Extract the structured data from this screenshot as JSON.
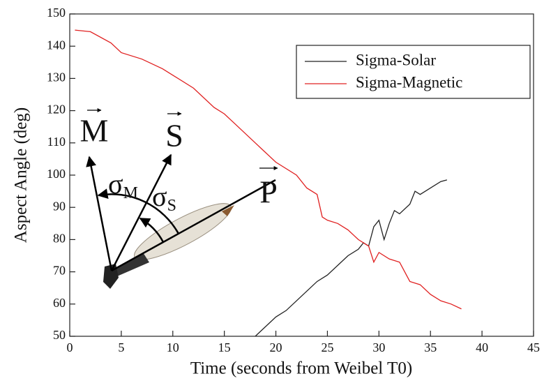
{
  "chart_data": {
    "type": "line",
    "xlabel": "Time (seconds from Weibel T0)",
    "ylabel": "Aspect Angle (deg)",
    "xlim": [
      0,
      45
    ],
    "ylim": [
      50,
      150
    ],
    "xticks": [
      0,
      5,
      10,
      15,
      20,
      25,
      30,
      35,
      40,
      45
    ],
    "yticks": [
      50,
      60,
      70,
      80,
      90,
      100,
      110,
      120,
      130,
      140,
      150
    ],
    "legend": "upper right",
    "series": [
      {
        "name": "Sigma-Solar",
        "color": "#222222",
        "x": [
          18,
          19,
          20,
          21,
          22,
          23,
          24,
          25,
          26,
          27,
          28,
          28.5,
          29,
          29.5,
          30,
          30.5,
          31,
          31.5,
          32,
          33,
          33.5,
          34,
          35,
          36,
          36.6
        ],
        "values": [
          50,
          53,
          56,
          58,
          61,
          64,
          67,
          69,
          72,
          75,
          77,
          79,
          78,
          84,
          86,
          80,
          85,
          89,
          88,
          91,
          95,
          94,
          96,
          98,
          98.5
        ]
      },
      {
        "name": "Sigma-Magnetic",
        "color": "#e02020",
        "x": [
          0.5,
          2,
          4,
          5,
          7,
          9,
          10,
          12,
          14,
          15,
          16,
          18,
          20,
          22,
          23,
          24,
          24.5,
          25,
          26,
          27,
          28,
          29,
          29.5,
          30,
          31,
          32,
          33,
          34,
          35,
          36,
          37,
          38
        ],
        "values": [
          145,
          144.5,
          141,
          138,
          136,
          133,
          131,
          127,
          121,
          119,
          116,
          110,
          104,
          100,
          96,
          94,
          87,
          86,
          85,
          83,
          80,
          78,
          73,
          76,
          74,
          73,
          67,
          66,
          63,
          61,
          60,
          58.5
        ]
      }
    ],
    "vectors": [
      "M",
      "S",
      "P"
    ],
    "angles": [
      {
        "symbol": "σ",
        "subscript": "M"
      },
      {
        "symbol": "σ",
        "subscript": "S"
      }
    ]
  }
}
